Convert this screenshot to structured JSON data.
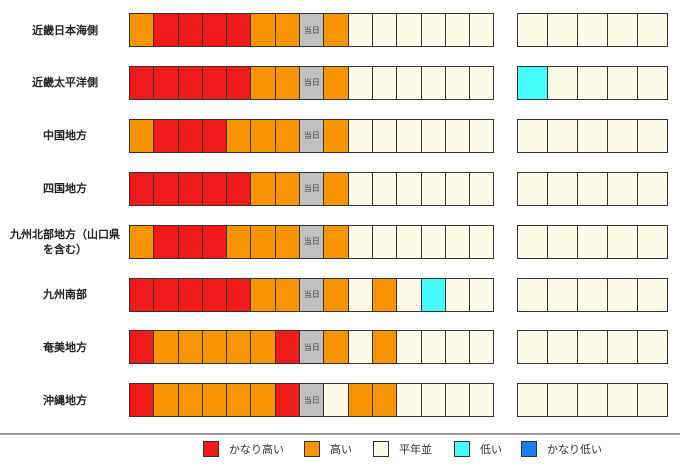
{
  "chart_data": {
    "type": "table",
    "today_label": "当日",
    "legend": [
      {
        "key": "vh",
        "label": "かなり高い",
        "color": "#f01a1a"
      },
      {
        "key": "h",
        "label": "高い",
        "color": "#f89400"
      },
      {
        "key": "n",
        "label": "平年並",
        "color": "#fdfbe8"
      },
      {
        "key": "l",
        "label": "低い",
        "color": "#45fcfc"
      },
      {
        "key": "vl",
        "label": "かなり低い",
        "color": "#1b7ff0"
      }
    ],
    "today_color": "#c0c0c0",
    "rows": [
      {
        "region": "近畿日本海側",
        "first": [
          "h",
          "vh",
          "vh",
          "vh",
          "vh",
          "h",
          "h",
          "t",
          "h",
          "n",
          "n",
          "n",
          "n",
          "n",
          "n"
        ],
        "second": [
          "n",
          "n",
          "n",
          "n",
          "n"
        ]
      },
      {
        "region": "近畿太平洋側",
        "first": [
          "vh",
          "vh",
          "vh",
          "vh",
          "vh",
          "h",
          "h",
          "t",
          "h",
          "n",
          "n",
          "n",
          "n",
          "n",
          "n"
        ],
        "second": [
          "l",
          "n",
          "n",
          "n",
          "n"
        ]
      },
      {
        "region": "中国地方",
        "first": [
          "h",
          "vh",
          "vh",
          "vh",
          "h",
          "h",
          "h",
          "t",
          "h",
          "n",
          "n",
          "n",
          "n",
          "n",
          "n"
        ],
        "second": [
          "n",
          "n",
          "n",
          "n",
          "n"
        ]
      },
      {
        "region": "四国地方",
        "first": [
          "vh",
          "vh",
          "vh",
          "vh",
          "vh",
          "h",
          "h",
          "t",
          "h",
          "n",
          "n",
          "n",
          "n",
          "n",
          "n"
        ],
        "second": [
          "n",
          "n",
          "n",
          "n",
          "n"
        ]
      },
      {
        "region": "九州北部地方（山口県を含む）",
        "first": [
          "h",
          "vh",
          "vh",
          "vh",
          "h",
          "h",
          "h",
          "t",
          "h",
          "n",
          "n",
          "n",
          "n",
          "n",
          "n"
        ],
        "second": [
          "n",
          "n",
          "n",
          "n",
          "n"
        ]
      },
      {
        "region": "九州南部",
        "first": [
          "vh",
          "vh",
          "vh",
          "vh",
          "vh",
          "h",
          "h",
          "t",
          "h",
          "n",
          "h",
          "n",
          "l",
          "n",
          "n"
        ],
        "second": [
          "n",
          "n",
          "n",
          "n",
          "n"
        ]
      },
      {
        "region": "奄美地方",
        "first": [
          "vh",
          "h",
          "h",
          "h",
          "h",
          "h",
          "vh",
          "t",
          "h",
          "n",
          "h",
          "n",
          "n",
          "n",
          "n"
        ],
        "second": [
          "n",
          "n",
          "n",
          "n",
          "n"
        ]
      },
      {
        "region": "沖縄地方",
        "first": [
          "vh",
          "h",
          "h",
          "h",
          "h",
          "h",
          "vh",
          "t",
          "n",
          "h",
          "h",
          "n",
          "n",
          "n",
          "n"
        ],
        "second": [
          "n",
          "n",
          "n",
          "n",
          "n"
        ]
      }
    ]
  }
}
